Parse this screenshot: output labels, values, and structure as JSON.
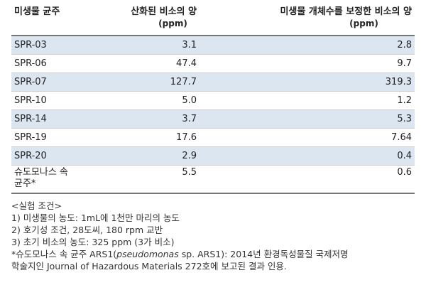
{
  "table": {
    "headers": {
      "strain": "미생물 균주",
      "oxidized": "산화된 비소의 양",
      "oxidized_unit": "(ppm)",
      "corrected": "미생물 개체수를 보정한 비소의 양",
      "corrected_unit": "(ppm)"
    },
    "rows": [
      {
        "strain": "SPR-03",
        "oxidized": "3.1",
        "corrected": "2.8"
      },
      {
        "strain": "SPR-06",
        "oxidized": "47.4",
        "corrected": "9.7"
      },
      {
        "strain": "SPR-07",
        "oxidized": "127.7",
        "corrected": "319.3"
      },
      {
        "strain": "SPR-10",
        "oxidized": "5.0",
        "corrected": "1.2"
      },
      {
        "strain": "SPR-14",
        "oxidized": "3.7",
        "corrected": "5.3"
      },
      {
        "strain": "SPR-19",
        "oxidized": "17.6",
        "corrected": "7.64"
      },
      {
        "strain": "SPR-20",
        "oxidized": "2.9",
        "corrected": "0.4"
      },
      {
        "strain_line1": "슈도모나스 속",
        "strain_line2": "균주*",
        "oxidized": "5.5",
        "corrected": "0.6"
      }
    ]
  },
  "notes": {
    "heading": "<실험 조건>",
    "items": [
      "1)  미생물의 농도: 1mL에 1천만 마리의 농도",
      "2)  호기성 조건, 28도씨, 180 rpm 교반",
      "3)  초기 비소의 농도: 325 ppm (3가 비소)"
    ],
    "footnote_prefix": "*슈도모나스 속 균주 ARS1(",
    "footnote_italic": "pseudomonas",
    "footnote_rest": " sp. ARS1): 2014년 환경독성물질 국제저명",
    "footnote_line2": "학술지인 Journal of Hazardous Materials 272호에 보고된 결과 인용."
  }
}
